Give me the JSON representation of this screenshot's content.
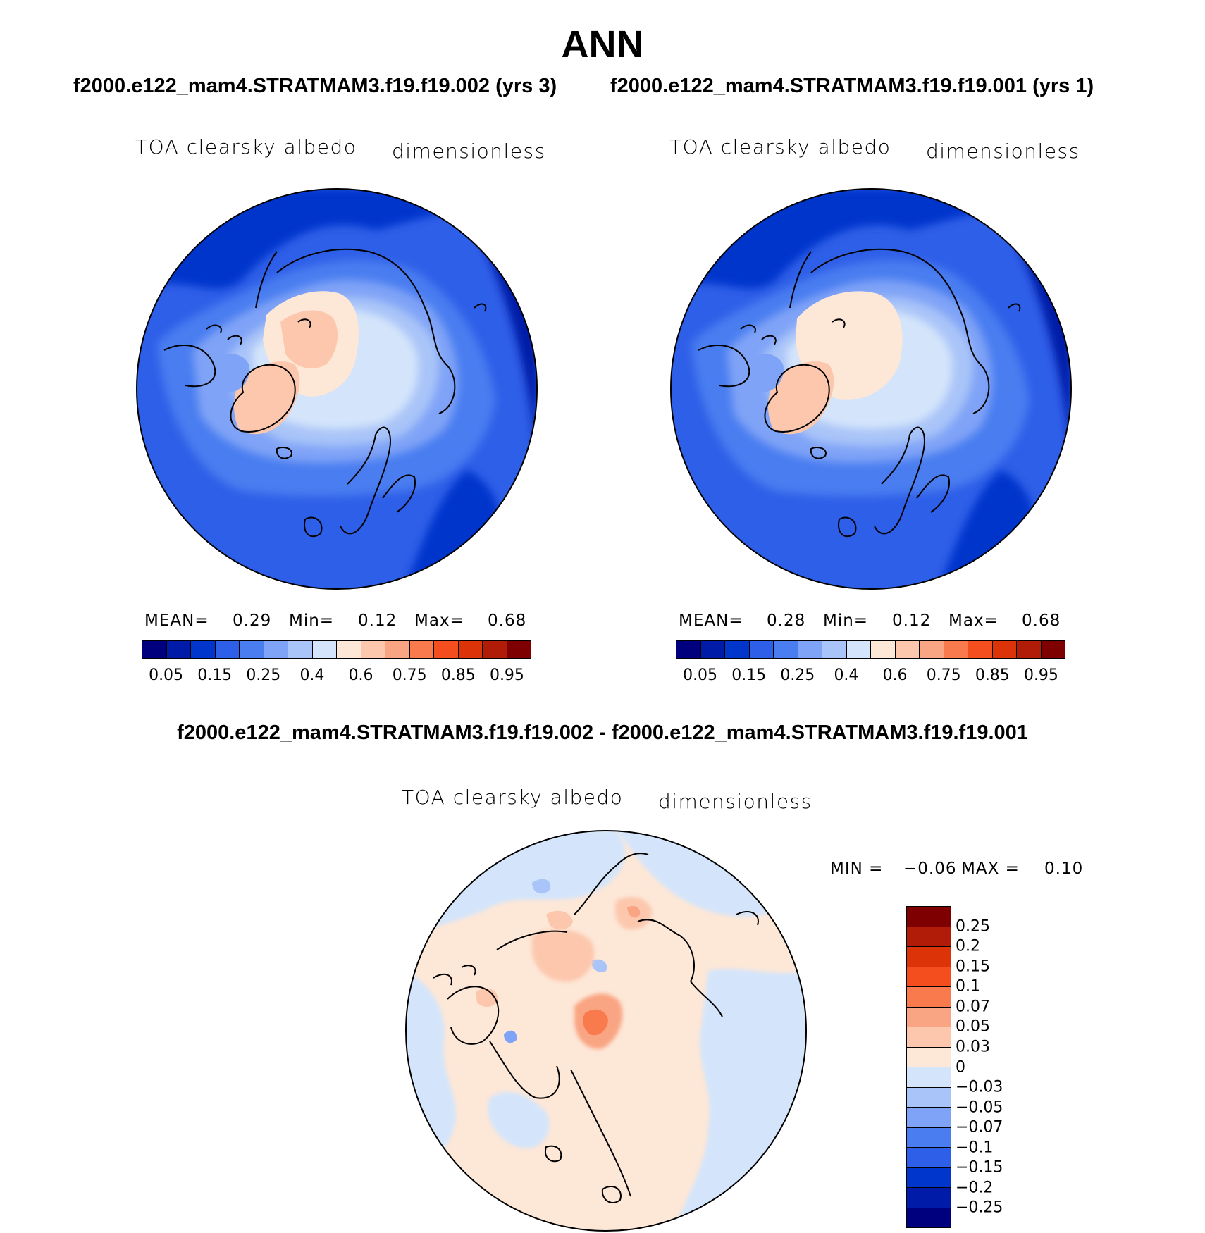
{
  "title": "ANN",
  "case_left": "f2000.e122_mam4.STRATMAM3.f19.f19.002 (yrs 3)",
  "case_right": "f2000.e122_mam4.STRATMAM3.f19.f19.001 (yrs 1)",
  "diff_title": "f2000.e122_mam4.STRATMAM3.f19.f19.002 - f2000.e122_mam4.STRATMAM3.f19.f19.001",
  "panels": [
    {
      "variable": "TOA clearsky albedo",
      "units": "dimensionless",
      "mean_label": "MEAN=",
      "mean_value": "0.29",
      "min_label": "Min=",
      "min_value": "0.12",
      "max_label": "Max=",
      "max_value": "0.68"
    },
    {
      "variable": "TOA clearsky albedo",
      "units": "dimensionless",
      "mean_label": "MEAN=",
      "mean_value": "0.28",
      "min_label": "Min=",
      "min_value": "0.12",
      "max_label": "Max=",
      "max_value": "0.68"
    }
  ],
  "diff_panel": {
    "variable": "TOA clearsky albedo",
    "units": "dimensionless",
    "min_label": "MIN =",
    "min_value": "−0.06",
    "max_label": "MAX =",
    "max_value": "0.10"
  },
  "colorbar_abs": {
    "colors": [
      "#00007f",
      "#001ba8",
      "#0036cc",
      "#2e5fe8",
      "#4a7df0",
      "#7fa3f7",
      "#a9c4f8",
      "#d4e5fb",
      "#fde7d7",
      "#fcc7ad",
      "#f9a482",
      "#f97a4c",
      "#f44e1e",
      "#dc3408",
      "#b11c08",
      "#7f0000"
    ],
    "tick_labels": [
      "0.05",
      "0.15",
      "0.25",
      "0.4",
      "0.6",
      "0.75",
      "0.85",
      "0.95"
    ]
  },
  "colorbar_diff": {
    "colors": [
      "#7f0000",
      "#b11c08",
      "#dc3408",
      "#f44e1e",
      "#f97a4c",
      "#f9a482",
      "#fcc7ad",
      "#fde7d7",
      "#d4e5fb",
      "#a9c4f8",
      "#7fa3f7",
      "#4a7df0",
      "#2e5fe8",
      "#0036cc",
      "#001ba8",
      "#00007f"
    ],
    "tick_labels": [
      "0.25",
      "0.2",
      "0.15",
      "0.1",
      "0.07",
      "0.05",
      "0.03",
      "0",
      "−0.03",
      "−0.05",
      "−0.07",
      "−0.1",
      "−0.15",
      "−0.2",
      "−0.25"
    ]
  }
}
